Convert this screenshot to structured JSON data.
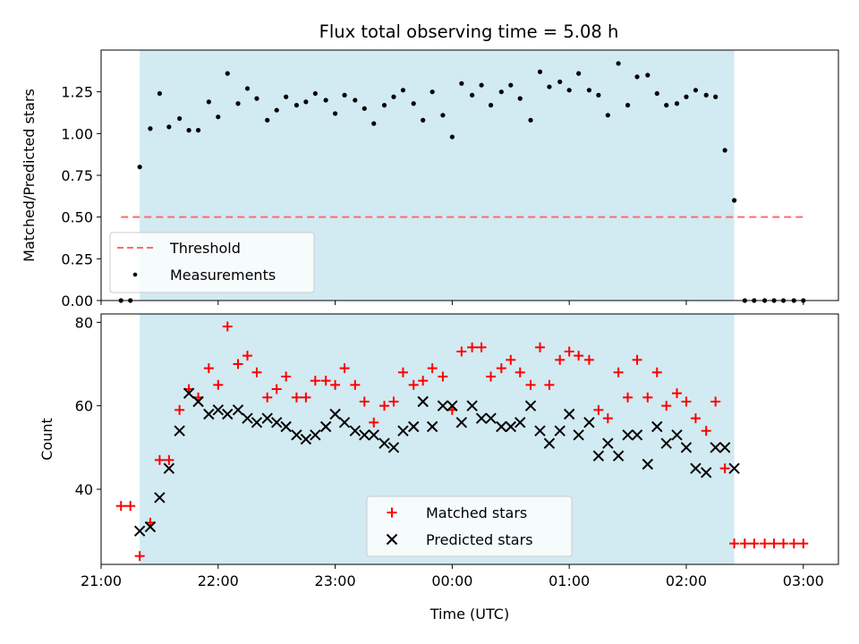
{
  "chart_data": {
    "type": "scatter",
    "title": "Flux total observing time = 5.08 h",
    "xlabel": "Time (UTC)",
    "x_tick_labels": [
      "21:00",
      "22:00",
      "23:00",
      "00:00",
      "01:00",
      "02:00",
      "03:00"
    ],
    "time_span_hours": [
      21.0,
      27.3
    ],
    "observing_window_hours": [
      21.33,
      26.41
    ],
    "colors": {
      "shade": "#add8e6",
      "threshold": "#ff6b6b",
      "measurements": "#000000",
      "matched": "#ff0000",
      "predicted": "#000000"
    },
    "panels": [
      {
        "ylabel": "Matched/Predicted stars",
        "ylim": [
          0,
          1.5
        ],
        "y_tick_labels": [
          "0.00",
          "0.25",
          "0.50",
          "0.75",
          "1.00",
          "1.25"
        ],
        "legend_placement": "lower-left",
        "series": [
          {
            "name": "Threshold",
            "style": "dashed-line",
            "x": [
              21.17,
              27.0
            ],
            "y": [
              0.5,
              0.5
            ]
          },
          {
            "name": "Measurements",
            "style": "dot",
            "x": [
              21.17,
              21.25,
              21.33,
              21.42,
              21.5,
              21.58,
              21.67,
              21.75,
              21.83,
              21.92,
              22.0,
              22.08,
              22.17,
              22.25,
              22.33,
              22.42,
              22.5,
              22.58,
              22.67,
              22.75,
              22.83,
              22.92,
              23.0,
              23.08,
              23.17,
              23.25,
              23.33,
              23.42,
              23.5,
              23.58,
              23.67,
              23.75,
              23.83,
              23.92,
              24.0,
              24.08,
              24.17,
              24.25,
              24.33,
              24.42,
              24.5,
              24.58,
              24.67,
              24.75,
              24.83,
              24.92,
              25.0,
              25.08,
              25.17,
              25.25,
              25.33,
              25.42,
              25.5,
              25.58,
              25.67,
              25.75,
              25.83,
              25.92,
              26.0,
              26.08,
              26.17,
              26.25,
              26.33,
              26.41,
              26.5,
              26.58,
              26.67,
              26.75,
              26.83,
              26.92,
              27.0
            ],
            "y": [
              0.0,
              0.0,
              0.8,
              1.03,
              1.24,
              1.04,
              1.09,
              1.02,
              1.02,
              1.19,
              1.1,
              1.36,
              1.18,
              1.27,
              1.21,
              1.08,
              1.14,
              1.22,
              1.17,
              1.19,
              1.24,
              1.2,
              1.12,
              1.23,
              1.2,
              1.15,
              1.06,
              1.17,
              1.22,
              1.26,
              1.18,
              1.08,
              1.25,
              1.11,
              0.98,
              1.3,
              1.23,
              1.29,
              1.17,
              1.25,
              1.29,
              1.21,
              1.08,
              1.37,
              1.28,
              1.31,
              1.26,
              1.36,
              1.26,
              1.23,
              1.11,
              1.42,
              1.17,
              1.34,
              1.35,
              1.24,
              1.17,
              1.18,
              1.22,
              1.26,
              1.23,
              1.22,
              0.9,
              0.6,
              0.0,
              0.0,
              0.0,
              0.0,
              0.0,
              0.0,
              0.0
            ]
          }
        ]
      },
      {
        "ylabel": "Count",
        "ylim": [
          22,
          82
        ],
        "y_tick_labels": [
          "40",
          "60",
          "80"
        ],
        "legend_placement": "lower-center",
        "series": [
          {
            "name": "Matched stars",
            "style": "plus",
            "x": [
              21.17,
              21.25,
              21.33,
              21.42,
              21.5,
              21.58,
              21.67,
              21.75,
              21.83,
              21.92,
              22.0,
              22.08,
              22.17,
              22.25,
              22.33,
              22.42,
              22.5,
              22.58,
              22.67,
              22.75,
              22.83,
              22.92,
              23.0,
              23.08,
              23.17,
              23.25,
              23.33,
              23.42,
              23.5,
              23.58,
              23.67,
              23.75,
              23.83,
              23.92,
              24.0,
              24.08,
              24.17,
              24.25,
              24.33,
              24.42,
              24.5,
              24.58,
              24.67,
              24.75,
              24.83,
              24.92,
              25.0,
              25.08,
              25.17,
              25.25,
              25.33,
              25.42,
              25.5,
              25.58,
              25.67,
              25.75,
              25.83,
              25.92,
              26.0,
              26.08,
              26.17,
              26.25,
              26.33,
              26.41,
              26.5,
              26.58,
              26.67,
              26.75,
              26.83,
              26.92,
              27.0
            ],
            "y": [
              36,
              36,
              24,
              32,
              47,
              47,
              59,
              64,
              62,
              69,
              65,
              79,
              70,
              72,
              68,
              62,
              64,
              67,
              62,
              62,
              66,
              66,
              65,
              69,
              65,
              61,
              56,
              60,
              61,
              68,
              65,
              66,
              69,
              67,
              59,
              73,
              74,
              74,
              67,
              69,
              71,
              68,
              65,
              74,
              65,
              71,
              73,
              72,
              71,
              59,
              57,
              68,
              62,
              71,
              62,
              68,
              60,
              63,
              61,
              57,
              54,
              61,
              45,
              27,
              27,
              27,
              27,
              27,
              27,
              27,
              27
            ]
          },
          {
            "name": "Predicted stars",
            "style": "x",
            "x": [
              21.33,
              21.42,
              21.5,
              21.58,
              21.67,
              21.75,
              21.83,
              21.92,
              22.0,
              22.08,
              22.17,
              22.25,
              22.33,
              22.42,
              22.5,
              22.58,
              22.67,
              22.75,
              22.83,
              22.92,
              23.0,
              23.08,
              23.17,
              23.25,
              23.33,
              23.42,
              23.5,
              23.58,
              23.67,
              23.75,
              23.83,
              23.92,
              24.0,
              24.08,
              24.17,
              24.25,
              24.33,
              24.42,
              24.5,
              24.58,
              24.67,
              24.75,
              24.83,
              24.92,
              25.0,
              25.08,
              25.17,
              25.25,
              25.33,
              25.42,
              25.5,
              25.58,
              25.67,
              25.75,
              25.83,
              25.92,
              26.0,
              26.08,
              26.17,
              26.25,
              26.33,
              26.41
            ],
            "y": [
              30,
              31,
              38,
              45,
              54,
              63,
              61,
              58,
              59,
              58,
              59,
              57,
              56,
              57,
              56,
              55,
              53,
              52,
              53,
              55,
              58,
              56,
              54,
              53,
              53,
              51,
              50,
              54,
              55,
              61,
              55,
              60,
              60,
              56,
              60,
              57,
              57,
              55,
              55,
              56,
              60,
              54,
              51,
              54,
              58,
              53,
              56,
              48,
              51,
              48,
              53,
              53,
              46,
              55,
              51,
              53,
              50,
              45,
              44,
              50,
              50,
              45
            ]
          }
        ]
      }
    ]
  }
}
